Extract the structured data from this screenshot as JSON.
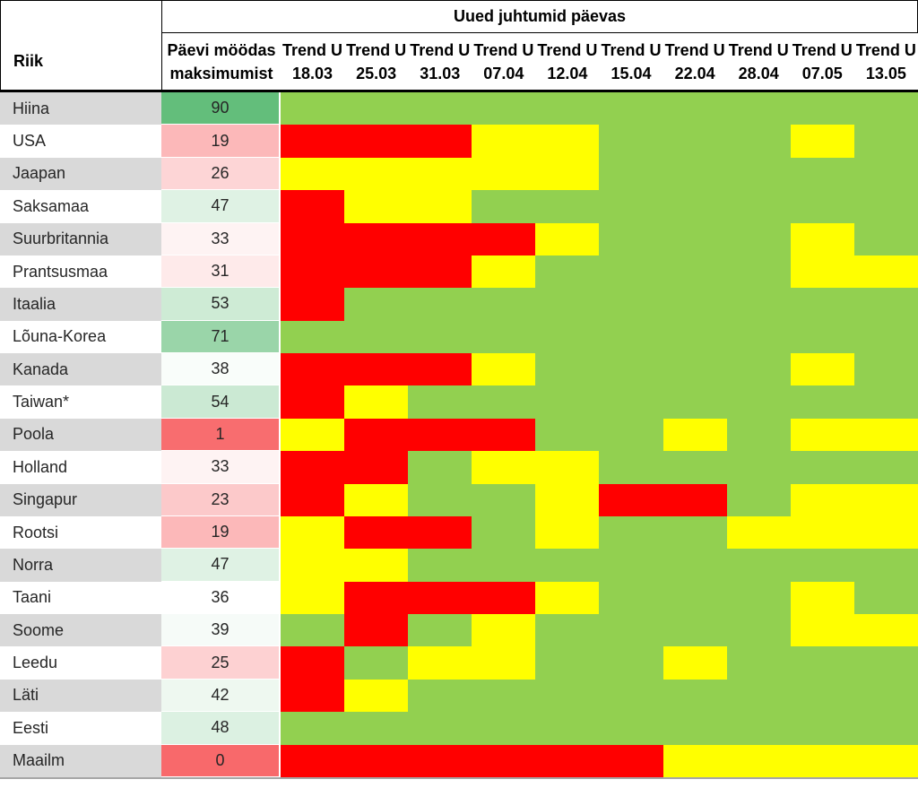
{
  "header": {
    "title": "Uued juhtumid päevas",
    "riik": "Riik",
    "days_line1": "Päevi möödas",
    "days_line2": "maksimumist",
    "trend_label": "Trend U",
    "dates": [
      "18.03",
      "25.03",
      "31.03",
      "07.04",
      "12.04",
      "15.04",
      "22.04",
      "28.04",
      "07.05",
      "13.05"
    ]
  },
  "colors": {
    "green": "#92D050",
    "yellow": "#FFFF00",
    "red": "#FF0000",
    "row_gray": "#D9D9D9",
    "row_white": "#FFFFFF",
    "bottom_line": "#A6A6A6"
  },
  "rows": [
    {
      "country": "Hiina",
      "days": "90",
      "days_color": "#63BE7B",
      "trend": [
        "green",
        "green",
        "green",
        "green",
        "green",
        "green",
        "green",
        "green",
        "green",
        "green"
      ]
    },
    {
      "country": "USA",
      "days": "19",
      "days_color": "#FCB8B9",
      "trend": [
        "red",
        "red",
        "red",
        "yellow",
        "yellow",
        "green",
        "green",
        "green",
        "yellow",
        "green"
      ]
    },
    {
      "country": "Jaapan",
      "days": "26",
      "days_color": "#FDD5D6",
      "trend": [
        "yellow",
        "yellow",
        "yellow",
        "yellow",
        "yellow",
        "green",
        "green",
        "green",
        "green",
        "green"
      ]
    },
    {
      "country": "Saksamaa",
      "days": "47",
      "days_color": "#DFF2E4",
      "trend": [
        "red",
        "yellow",
        "yellow",
        "green",
        "green",
        "green",
        "green",
        "green",
        "green",
        "green"
      ]
    },
    {
      "country": "Suurbritannia",
      "days": "33",
      "days_color": "#FEF3F3",
      "trend": [
        "red",
        "red",
        "red",
        "red",
        "yellow",
        "green",
        "green",
        "green",
        "yellow",
        "green"
      ]
    },
    {
      "country": "Prantsusmaa",
      "days": "31",
      "days_color": "#FEEAEA",
      "trend": [
        "red",
        "red",
        "red",
        "yellow",
        "green",
        "green",
        "green",
        "green",
        "yellow",
        "yellow"
      ]
    },
    {
      "country": "Itaalia",
      "days": "53",
      "days_color": "#CEEBD5",
      "trend": [
        "red",
        "green",
        "green",
        "green",
        "green",
        "green",
        "green",
        "green",
        "green",
        "green"
      ]
    },
    {
      "country": "Lõuna-Korea",
      "days": "71",
      "days_color": "#9AD5A9",
      "trend": [
        "green",
        "green",
        "green",
        "green",
        "green",
        "green",
        "green",
        "green",
        "green",
        "green"
      ]
    },
    {
      "country": "Kanada",
      "days": "38",
      "days_color": "#F9FDFA",
      "trend": [
        "red",
        "red",
        "red",
        "yellow",
        "green",
        "green",
        "green",
        "green",
        "yellow",
        "green"
      ]
    },
    {
      "country": "Taiwan*",
      "days": "54",
      "days_color": "#CBE9D3",
      "trend": [
        "red",
        "yellow",
        "green",
        "green",
        "green",
        "green",
        "green",
        "green",
        "green",
        "green"
      ]
    },
    {
      "country": "Poola",
      "days": "1",
      "days_color": "#F86D6F",
      "trend": [
        "yellow",
        "red",
        "red",
        "red",
        "green",
        "green",
        "yellow",
        "green",
        "yellow",
        "yellow"
      ]
    },
    {
      "country": "Holland",
      "days": "33",
      "days_color": "#FEF3F3",
      "trend": [
        "red",
        "red",
        "green",
        "yellow",
        "yellow",
        "green",
        "green",
        "green",
        "green",
        "green"
      ]
    },
    {
      "country": "Singapur",
      "days": "23",
      "days_color": "#FCC9CA",
      "trend": [
        "red",
        "yellow",
        "green",
        "green",
        "yellow",
        "red",
        "red",
        "green",
        "yellow",
        "yellow"
      ]
    },
    {
      "country": "Rootsi",
      "days": "19",
      "days_color": "#FCB8B9",
      "trend": [
        "yellow",
        "red",
        "red",
        "green",
        "yellow",
        "green",
        "green",
        "yellow",
        "yellow",
        "yellow"
      ]
    },
    {
      "country": "Norra",
      "days": "47",
      "days_color": "#DFF2E4",
      "trend": [
        "yellow",
        "yellow",
        "green",
        "green",
        "green",
        "green",
        "green",
        "green",
        "green",
        "green"
      ]
    },
    {
      "country": "Taani",
      "days": "36",
      "days_color": "#FFFFFF",
      "trend": [
        "yellow",
        "red",
        "red",
        "red",
        "yellow",
        "green",
        "green",
        "green",
        "yellow",
        "green"
      ]
    },
    {
      "country": "Soome",
      "days": "39",
      "days_color": "#F6FBF8",
      "trend": [
        "green",
        "red",
        "green",
        "yellow",
        "green",
        "green",
        "green",
        "green",
        "yellow",
        "yellow"
      ]
    },
    {
      "country": "Leedu",
      "days": "25",
      "days_color": "#FDD1D2",
      "trend": [
        "red",
        "green",
        "yellow",
        "yellow",
        "green",
        "green",
        "yellow",
        "green",
        "green",
        "green"
      ]
    },
    {
      "country": "Läti",
      "days": "42",
      "days_color": "#EEF8F0",
      "trend": [
        "red",
        "yellow",
        "green",
        "green",
        "green",
        "green",
        "green",
        "green",
        "green",
        "green"
      ]
    },
    {
      "country": "Eesti",
      "days": "48",
      "days_color": "#DCF1E2",
      "trend": [
        "green",
        "green",
        "green",
        "green",
        "green",
        "green",
        "green",
        "green",
        "green",
        "green"
      ]
    },
    {
      "country": "Maailm",
      "days": "0",
      "days_color": "#F8696B",
      "trend": [
        "red",
        "red",
        "red",
        "red",
        "red",
        "red",
        "yellow",
        "yellow",
        "yellow",
        "yellow"
      ]
    }
  ],
  "chart_data": {
    "type": "heatmap",
    "title": "Uued juhtumid päevas",
    "x_labels": [
      "18.03",
      "25.03",
      "31.03",
      "07.04",
      "12.04",
      "15.04",
      "22.04",
      "28.04",
      "07.05",
      "13.05"
    ],
    "x_label_prefix": "Trend U",
    "y_labels": [
      "Hiina",
      "USA",
      "Jaapan",
      "Saksamaa",
      "Suurbritannia",
      "Prantsusmaa",
      "Itaalia",
      "Lõuna-Korea",
      "Kanada",
      "Taiwan*",
      "Poola",
      "Holland",
      "Singapur",
      "Rootsi",
      "Norra",
      "Taani",
      "Soome",
      "Leedu",
      "Läti",
      "Eesti",
      "Maailm"
    ],
    "days_past_maximum_label": "Päevi möödas maksimumist",
    "days_past_maximum": [
      90,
      19,
      26,
      47,
      33,
      31,
      53,
      71,
      38,
      54,
      1,
      33,
      23,
      19,
      47,
      36,
      39,
      25,
      42,
      48,
      0
    ],
    "cell_categories": [
      "green",
      "yellow",
      "red"
    ],
    "cells": [
      [
        "green",
        "green",
        "green",
        "green",
        "green",
        "green",
        "green",
        "green",
        "green",
        "green"
      ],
      [
        "red",
        "red",
        "red",
        "yellow",
        "yellow",
        "green",
        "green",
        "green",
        "yellow",
        "green"
      ],
      [
        "yellow",
        "yellow",
        "yellow",
        "yellow",
        "yellow",
        "green",
        "green",
        "green",
        "green",
        "green"
      ],
      [
        "red",
        "yellow",
        "yellow",
        "green",
        "green",
        "green",
        "green",
        "green",
        "green",
        "green"
      ],
      [
        "red",
        "red",
        "red",
        "red",
        "yellow",
        "green",
        "green",
        "green",
        "yellow",
        "green"
      ],
      [
        "red",
        "red",
        "red",
        "yellow",
        "green",
        "green",
        "green",
        "green",
        "yellow",
        "yellow"
      ],
      [
        "red",
        "green",
        "green",
        "green",
        "green",
        "green",
        "green",
        "green",
        "green",
        "green"
      ],
      [
        "green",
        "green",
        "green",
        "green",
        "green",
        "green",
        "green",
        "green",
        "green",
        "green"
      ],
      [
        "red",
        "red",
        "red",
        "yellow",
        "green",
        "green",
        "green",
        "green",
        "yellow",
        "green"
      ],
      [
        "red",
        "yellow",
        "green",
        "green",
        "green",
        "green",
        "green",
        "green",
        "green",
        "green"
      ],
      [
        "yellow",
        "red",
        "red",
        "red",
        "green",
        "green",
        "yellow",
        "green",
        "yellow",
        "yellow"
      ],
      [
        "red",
        "red",
        "green",
        "yellow",
        "yellow",
        "green",
        "green",
        "green",
        "green",
        "green"
      ],
      [
        "red",
        "yellow",
        "green",
        "green",
        "yellow",
        "red",
        "red",
        "green",
        "yellow",
        "yellow"
      ],
      [
        "yellow",
        "red",
        "red",
        "green",
        "yellow",
        "green",
        "green",
        "yellow",
        "yellow",
        "yellow"
      ],
      [
        "yellow",
        "yellow",
        "green",
        "green",
        "green",
        "green",
        "green",
        "green",
        "green",
        "green"
      ],
      [
        "yellow",
        "red",
        "red",
        "red",
        "yellow",
        "green",
        "green",
        "green",
        "yellow",
        "green"
      ],
      [
        "green",
        "red",
        "green",
        "yellow",
        "green",
        "green",
        "green",
        "green",
        "yellow",
        "yellow"
      ],
      [
        "red",
        "green",
        "yellow",
        "yellow",
        "green",
        "green",
        "yellow",
        "green",
        "green",
        "green"
      ],
      [
        "red",
        "yellow",
        "green",
        "green",
        "green",
        "green",
        "green",
        "green",
        "green",
        "green"
      ],
      [
        "green",
        "green",
        "green",
        "green",
        "green",
        "green",
        "green",
        "green",
        "green",
        "green"
      ],
      [
        "red",
        "red",
        "red",
        "red",
        "red",
        "red",
        "yellow",
        "yellow",
        "yellow",
        "yellow"
      ]
    ],
    "color_hex": {
      "green": "#92D050",
      "yellow": "#FFFF00",
      "red": "#FF0000"
    },
    "legend_position": "none",
    "grid": false
  }
}
